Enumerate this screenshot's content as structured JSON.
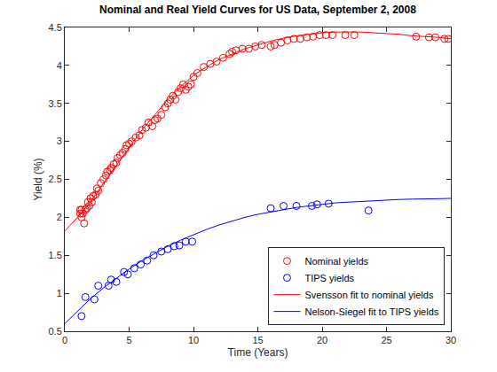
{
  "chart_data": {
    "type": "scatter",
    "title": "Nominal and Real Yield Curves for US Data, September 2, 2008",
    "x_label": "Time (Years)",
    "y_label": "Yield (%)",
    "xlim": [
      0,
      30
    ],
    "xticks": [
      0,
      5,
      10,
      15,
      20,
      25,
      30
    ],
    "ylim": [
      0.5,
      4.5
    ],
    "yticks": [
      0.5,
      1,
      1.5,
      2,
      2.5,
      3,
      3.5,
      4,
      4.5
    ],
    "grid": false,
    "legend": "lower right",
    "series": [
      {
        "name": "Nominal yields",
        "type": "scatter",
        "marker": "circle",
        "color": "#ff0000",
        "x": [
          1.2,
          1.2,
          1.3,
          1.3,
          1.4,
          1.5,
          1.6,
          1.7,
          1.8,
          1.9,
          2.0,
          2.1,
          2.2,
          2.4,
          2.5,
          2.6,
          2.8,
          3.0,
          3.2,
          3.3,
          3.5,
          3.6,
          3.8,
          4.0,
          4.1,
          4.3,
          4.5,
          4.7,
          4.8,
          5.0,
          5.2,
          5.5,
          5.8,
          6.0,
          6.3,
          6.5,
          6.8,
          7.0,
          7.2,
          7.5,
          7.8,
          8.0,
          8.2,
          8.4,
          8.6,
          8.8,
          9.0,
          9.2,
          9.4,
          9.6,
          9.8,
          10.0,
          10.3,
          10.8,
          11.3,
          11.8,
          12.3,
          12.8,
          13.0,
          13.3,
          13.8,
          14.3,
          14.8,
          15.3,
          16.0,
          16.3,
          16.8,
          17.3,
          17.8,
          18.3,
          18.8,
          19.3,
          19.8,
          20.3,
          20.8,
          21.8,
          22.5,
          27.3,
          28.3,
          28.8,
          29.5,
          29.8
        ],
        "values": [
          2.05,
          2.1,
          2.0,
          2.1,
          2.05,
          1.92,
          2.1,
          2.12,
          2.2,
          2.15,
          2.25,
          2.2,
          2.28,
          2.3,
          2.38,
          2.35,
          2.45,
          2.5,
          2.55,
          2.6,
          2.62,
          2.65,
          2.7,
          2.72,
          2.78,
          2.82,
          2.85,
          2.9,
          2.95,
          2.97,
          3.0,
          3.05,
          3.08,
          3.15,
          3.18,
          3.25,
          3.2,
          3.28,
          3.3,
          3.35,
          3.45,
          3.5,
          3.55,
          3.6,
          3.55,
          3.65,
          3.7,
          3.75,
          3.68,
          3.72,
          3.75,
          3.85,
          3.9,
          3.98,
          4.02,
          4.05,
          4.1,
          4.15,
          4.18,
          4.2,
          4.22,
          4.22,
          4.25,
          4.27,
          4.25,
          4.27,
          4.3,
          4.33,
          4.35,
          4.35,
          4.37,
          4.38,
          4.4,
          4.4,
          4.4,
          4.4,
          4.4,
          4.38,
          4.37,
          4.37,
          4.35,
          4.35
        ]
      },
      {
        "name": "TIPS yields",
        "type": "scatter",
        "marker": "circle",
        "color": "#0000ff",
        "x": [
          1.3,
          1.6,
          2.3,
          2.6,
          3.4,
          3.6,
          4.0,
          4.6,
          4.9,
          5.4,
          5.9,
          6.4,
          6.9,
          7.5,
          8.0,
          8.5,
          8.9,
          9.4,
          9.9,
          16.0,
          17.0,
          18.0,
          19.2,
          19.6,
          20.5,
          23.6
        ],
        "values": [
          0.7,
          0.95,
          0.92,
          1.1,
          1.1,
          1.18,
          1.15,
          1.28,
          1.25,
          1.33,
          1.38,
          1.43,
          1.5,
          1.55,
          1.58,
          1.62,
          1.63,
          1.68,
          1.68,
          2.12,
          2.15,
          2.15,
          2.15,
          2.17,
          2.18,
          2.09
        ]
      },
      {
        "name": "Svensson fit to nominal yields",
        "type": "line",
        "line_style": "solid",
        "color": "#ff0000",
        "x": [
          0,
          1,
          2,
          3,
          4,
          5,
          6,
          7,
          8,
          9,
          10,
          11,
          12,
          13,
          14,
          15,
          16,
          17,
          18,
          19,
          20,
          21,
          22,
          23,
          24,
          25,
          26,
          27,
          28,
          29,
          30
        ],
        "values": [
          1.82,
          2.0,
          2.2,
          2.45,
          2.68,
          2.92,
          3.15,
          3.35,
          3.55,
          3.72,
          3.87,
          3.98,
          4.08,
          4.15,
          4.22,
          4.27,
          4.32,
          4.36,
          4.39,
          4.41,
          4.43,
          4.44,
          4.44,
          4.44,
          4.43,
          4.42,
          4.41,
          4.39,
          4.38,
          4.37,
          4.35
        ]
      },
      {
        "name": "Nelson-Siegel fit to TIPS yields",
        "type": "line",
        "line_style": "solid",
        "color": "#0000ff",
        "x": [
          0,
          1,
          2,
          3,
          4,
          5,
          6,
          7,
          8,
          9,
          10,
          11,
          12,
          13,
          14,
          15,
          16,
          17,
          18,
          19,
          20,
          21,
          22,
          23,
          24,
          25,
          26,
          27,
          28,
          29,
          30
        ],
        "values": [
          0.6,
          0.77,
          0.93,
          1.07,
          1.2,
          1.32,
          1.43,
          1.53,
          1.62,
          1.7,
          1.77,
          1.84,
          1.9,
          1.95,
          2.0,
          2.04,
          2.07,
          2.1,
          2.13,
          2.15,
          2.17,
          2.19,
          2.2,
          2.21,
          2.22,
          2.23,
          2.235,
          2.24,
          2.24,
          2.245,
          2.25
        ]
      }
    ]
  }
}
